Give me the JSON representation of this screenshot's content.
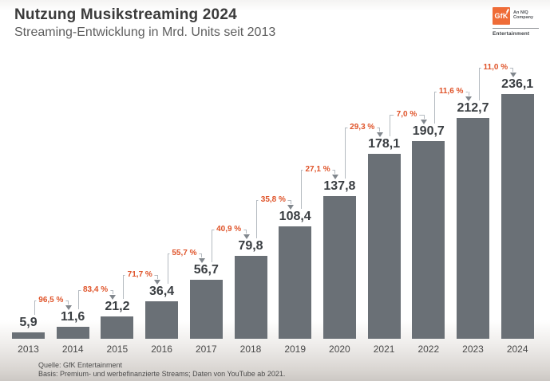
{
  "header": {
    "title": "Nutzung Musikstreaming 2024",
    "subtitle": "Streaming-Entwicklung in Mrd. Units seit 2013"
  },
  "logo": {
    "mark": "GfK",
    "tagline": "An NIQ Company",
    "division": "Entertainment",
    "accent_color": "#EF6C37"
  },
  "chart_data": {
    "type": "bar",
    "title": "Nutzung Musikstreaming 2024",
    "subtitle": "Streaming-Entwicklung in Mrd. Units seit 2013",
    "unit": "Mrd. Units",
    "categories": [
      "2013",
      "2014",
      "2015",
      "2016",
      "2017",
      "2018",
      "2019",
      "2020",
      "2021",
      "2022",
      "2023",
      "2024"
    ],
    "values": [
      5.9,
      11.6,
      21.2,
      36.4,
      56.7,
      79.8,
      108.4,
      137.8,
      178.1,
      190.7,
      212.7,
      236.1
    ],
    "value_labels": [
      "5,9",
      "11,6",
      "21,2",
      "36,4",
      "56,7",
      "79,8",
      "108,4",
      "137,8",
      "178,1",
      "190,7",
      "212,7",
      "236,1"
    ],
    "growth_labels": [
      "96,5 %",
      "83,4 %",
      "71,7 %",
      "55,7 %",
      "40,9 %",
      "35,8 %",
      "27,1 %",
      "29,3 %",
      "7,0 %",
      "11,6 %",
      "11,0 %"
    ],
    "growth_values_percent": [
      96.5,
      83.4,
      71.7,
      55.7,
      40.9,
      35.8,
      27.1,
      29.3,
      7.0,
      11.6,
      11.0
    ],
    "ylim": [
      0,
      250
    ],
    "grid": false,
    "legend": null,
    "xlabel": "",
    "ylabel": "Mrd. Units",
    "bar_color": "#6A7076",
    "growth_color": "#DF5329",
    "connector_color": "#B4BAC0",
    "arrow_color": "#81878D"
  },
  "footer": {
    "source": "Quelle: GfK Entertainment",
    "basis": "Basis: Premium- und werbefinanzierte Streams; Daten von YouTube ab 2021."
  }
}
